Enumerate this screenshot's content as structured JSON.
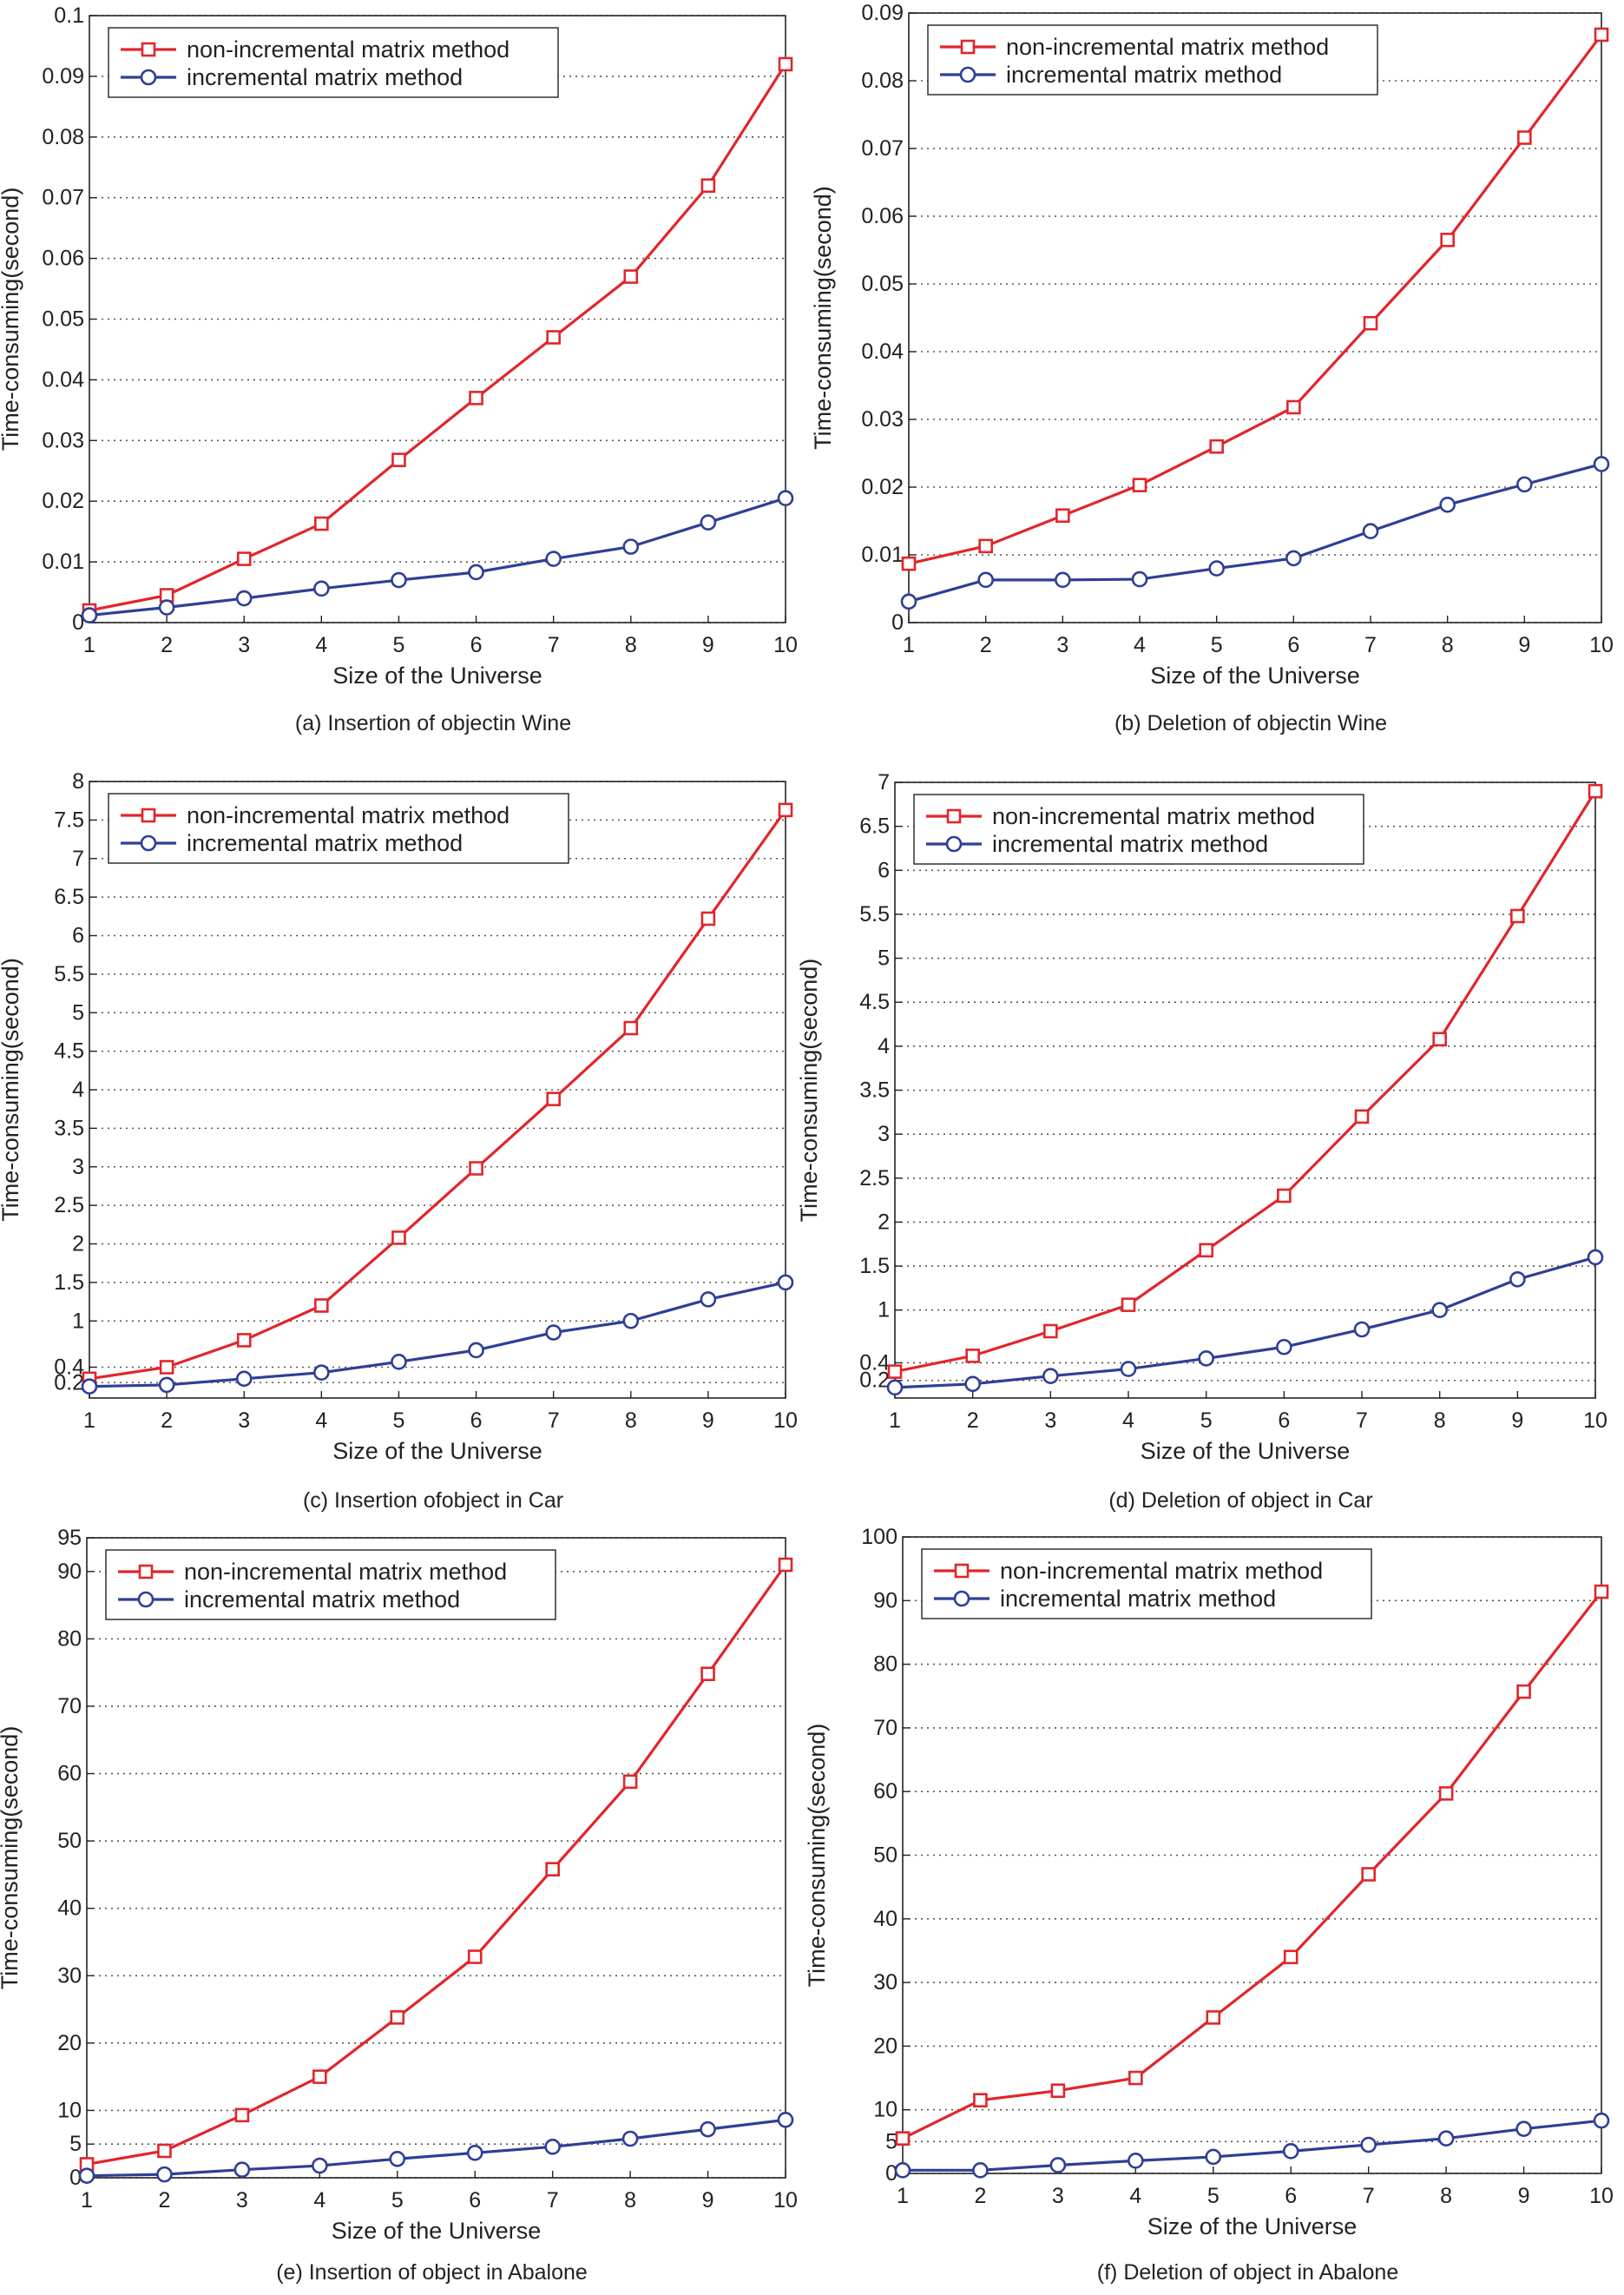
{
  "colors": {
    "non_incremental": "#e0262b",
    "incremental": "#2e3f95",
    "grid": "#555555",
    "axis": "#222222"
  },
  "chart_data": [
    {
      "type": "line",
      "caption": "(a) Insertion of objectin Wine",
      "xlabel": "Size of the Universe",
      "ylabel": "Time-consuming(second)",
      "x": [
        1,
        2,
        3,
        4,
        5,
        6,
        7,
        8,
        9,
        10
      ],
      "xlim": [
        1,
        10
      ],
      "ylim": [
        0,
        0.1
      ],
      "yticks": [
        0,
        0.01,
        0.02,
        0.03,
        0.04,
        0.05,
        0.06,
        0.07,
        0.08,
        0.09,
        0.1
      ],
      "ytick_labels": [
        "0",
        "0.01",
        "0.02",
        "0.03",
        "0.04",
        "0.05",
        "0.06",
        "0.07",
        "0.08",
        "0.09",
        "0.1"
      ],
      "grid": "horizontal dotted",
      "legend_position": "top-left",
      "series": [
        {
          "name": "non-incremental matrix method",
          "marker": "square",
          "values": [
            0.002,
            0.0045,
            0.0105,
            0.0163,
            0.0268,
            0.037,
            0.047,
            0.057,
            0.072,
            0.092
          ]
        },
        {
          "name": "incremental matrix method",
          "marker": "circle",
          "values": [
            0.0012,
            0.0025,
            0.004,
            0.0056,
            0.007,
            0.0083,
            0.0105,
            0.0125,
            0.0165,
            0.0205
          ]
        }
      ]
    },
    {
      "type": "line",
      "caption": "(b) Deletion of objectin Wine",
      "xlabel": "Size of the Universe",
      "ylabel": "Time-consuming(second)",
      "x": [
        1,
        2,
        3,
        4,
        5,
        6,
        7,
        8,
        9,
        10
      ],
      "xlim": [
        1,
        10
      ],
      "ylim": [
        0,
        0.09
      ],
      "yticks": [
        0,
        0.01,
        0.02,
        0.03,
        0.04,
        0.05,
        0.06,
        0.07,
        0.08,
        0.09
      ],
      "ytick_labels": [
        "0",
        "0.01",
        "0.02",
        "0.03",
        "0.04",
        "0.05",
        "0.06",
        "0.07",
        "0.08",
        "0.09"
      ],
      "grid": "horizontal dotted",
      "legend_position": "top-left",
      "series": [
        {
          "name": "non-incremental matrix method",
          "marker": "square",
          "values": [
            0.0087,
            0.0113,
            0.0158,
            0.0203,
            0.026,
            0.0318,
            0.0442,
            0.0565,
            0.0716,
            0.0868
          ]
        },
        {
          "name": "incremental matrix method",
          "marker": "circle",
          "values": [
            0.0031,
            0.0063,
            0.0063,
            0.0064,
            0.008,
            0.0095,
            0.0135,
            0.0174,
            0.0204,
            0.0234
          ]
        }
      ]
    },
    {
      "type": "line",
      "caption": "(c) Insertion ofobject in Car",
      "xlabel": "Size of the Universe",
      "ylabel": "Time-consuming(second)",
      "x": [
        1,
        2,
        3,
        4,
        5,
        6,
        7,
        8,
        9,
        10
      ],
      "xlim": [
        1,
        10
      ],
      "ylim": [
        0,
        8
      ],
      "yticks": [
        0.2,
        0.4,
        1,
        1.5,
        2,
        2.5,
        3,
        3.5,
        4,
        4.5,
        5,
        5.5,
        6,
        6.5,
        7,
        7.5,
        8
      ],
      "ytick_labels": [
        "0.2",
        "0.4",
        "1",
        "1.5",
        "2",
        "2.5",
        "3",
        "3.5",
        "4",
        "4.5",
        "5",
        "5.5",
        "6",
        "6.5",
        "7",
        "7.5",
        "8"
      ],
      "grid": "horizontal dotted",
      "legend_position": "top-left",
      "series": [
        {
          "name": "non-incremental matrix method",
          "marker": "square",
          "values": [
            0.25,
            0.4,
            0.75,
            1.2,
            2.08,
            2.98,
            3.88,
            4.8,
            6.22,
            7.63
          ]
        },
        {
          "name": "incremental matrix method",
          "marker": "circle",
          "values": [
            0.15,
            0.17,
            0.25,
            0.33,
            0.47,
            0.62,
            0.85,
            1.0,
            1.28,
            1.5
          ]
        }
      ]
    },
    {
      "type": "line",
      "caption": "(d) Deletion of object in Car",
      "xlabel": "Size of the Universe",
      "ylabel": "Time-consuming(second)",
      "x": [
        1,
        2,
        3,
        4,
        5,
        6,
        7,
        8,
        9,
        10
      ],
      "xlim": [
        1,
        10
      ],
      "ylim": [
        0,
        7
      ],
      "yticks": [
        0.2,
        0.4,
        1,
        1.5,
        2,
        2.5,
        3,
        3.5,
        4,
        4.5,
        5,
        5.5,
        6,
        6.5,
        7
      ],
      "ytick_labels": [
        "0.2",
        "0.4",
        "1",
        "1.5",
        "2",
        "2.5",
        "3",
        "3.5",
        "4",
        "4.5",
        "5",
        "5.5",
        "6",
        "6.5",
        "7"
      ],
      "grid": "horizontal dotted",
      "legend_position": "top-left",
      "series": [
        {
          "name": "non-incremental matrix method",
          "marker": "square",
          "values": [
            0.3,
            0.48,
            0.76,
            1.06,
            1.68,
            2.3,
            3.2,
            4.08,
            5.48,
            6.9
          ]
        },
        {
          "name": "incremental matrix method",
          "marker": "circle",
          "values": [
            0.12,
            0.16,
            0.25,
            0.33,
            0.45,
            0.58,
            0.78,
            1.0,
            1.35,
            1.6
          ]
        }
      ]
    },
    {
      "type": "line",
      "caption": "(e) Insertion of object in Abalone",
      "xlabel": "Size of the Universe",
      "ylabel": "Time-consuming(second)",
      "x": [
        1,
        2,
        3,
        4,
        5,
        6,
        7,
        8,
        9,
        10
      ],
      "xlim": [
        1,
        10
      ],
      "ylim": [
        0,
        95
      ],
      "yticks": [
        0,
        5,
        10,
        20,
        30,
        40,
        50,
        60,
        70,
        80,
        90,
        95
      ],
      "ytick_labels": [
        "0",
        "5",
        "10",
        "20",
        "30",
        "40",
        "50",
        "60",
        "70",
        "80",
        "90",
        "95"
      ],
      "grid": "horizontal dotted",
      "legend_position": "top-left",
      "series": [
        {
          "name": "non-incremental matrix method",
          "marker": "square",
          "values": [
            2,
            4,
            9.3,
            15,
            23.8,
            32.8,
            45.8,
            58.8,
            74.8,
            91
          ]
        },
        {
          "name": "incremental matrix method",
          "marker": "circle",
          "values": [
            0.3,
            0.5,
            1.2,
            1.8,
            2.8,
            3.7,
            4.6,
            5.8,
            7.2,
            8.6
          ]
        }
      ]
    },
    {
      "type": "line",
      "caption": "(f) Deletion of object in Abalone",
      "xlabel": "Size of the Universe",
      "ylabel": "Time-consuming(second)",
      "x": [
        1,
        2,
        3,
        4,
        5,
        6,
        7,
        8,
        9,
        10
      ],
      "xlim": [
        1,
        10
      ],
      "ylim": [
        0,
        100
      ],
      "yticks": [
        0,
        5,
        10,
        20,
        30,
        40,
        50,
        60,
        70,
        80,
        90,
        100
      ],
      "ytick_labels": [
        "0",
        "5",
        "10",
        "20",
        "30",
        "40",
        "50",
        "60",
        "70",
        "80",
        "90",
        "100"
      ],
      "grid": "horizontal dotted",
      "legend_position": "top-left",
      "series": [
        {
          "name": "non-incremental matrix method",
          "marker": "square",
          "values": [
            5.5,
            11.5,
            13,
            15,
            24.5,
            34,
            47,
            59.7,
            75.7,
            91.4
          ]
        },
        {
          "name": "incremental matrix method",
          "marker": "circle",
          "values": [
            0.5,
            0.5,
            1.3,
            2,
            2.6,
            3.5,
            4.5,
            5.5,
            7,
            8.3
          ]
        }
      ]
    }
  ]
}
